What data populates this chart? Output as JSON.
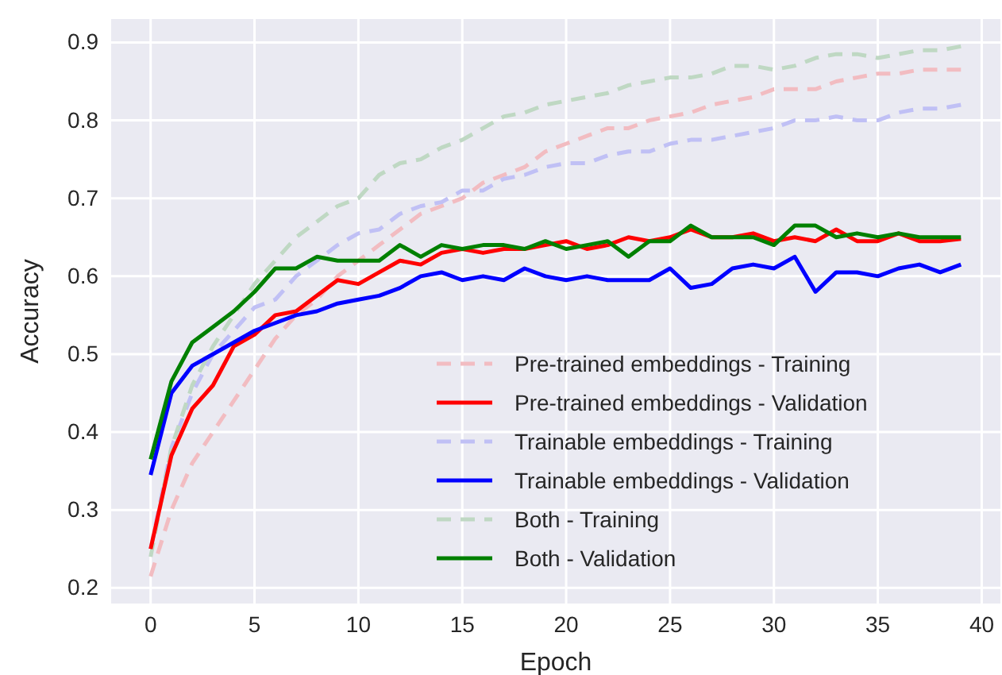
{
  "chart_data": {
    "type": "line",
    "xlabel": "Epoch",
    "ylabel": "Accuracy",
    "x": [
      0,
      1,
      2,
      3,
      4,
      5,
      6,
      7,
      8,
      9,
      10,
      11,
      12,
      13,
      14,
      15,
      16,
      17,
      18,
      19,
      20,
      21,
      22,
      23,
      24,
      25,
      26,
      27,
      28,
      29,
      30,
      31,
      32,
      33,
      34,
      35,
      36,
      37,
      38,
      39
    ],
    "xlim": [
      -1.9,
      40.9
    ],
    "xticks": [
      0,
      5,
      10,
      15,
      20,
      25,
      30,
      35,
      40
    ],
    "ylim": [
      0.18,
      0.93
    ],
    "yticks": [
      0.2,
      0.3,
      0.4,
      0.5,
      0.6,
      0.7,
      0.8,
      0.9
    ],
    "grid": true,
    "legend": "bottom right",
    "series": [
      {
        "name": "Pre-trained embeddings - Training",
        "color": "#f2bcc1",
        "line_style": "dashed",
        "values": [
          0.215,
          0.3,
          0.36,
          0.4,
          0.44,
          0.48,
          0.52,
          0.55,
          0.57,
          0.6,
          0.62,
          0.64,
          0.66,
          0.68,
          0.69,
          0.7,
          0.72,
          0.73,
          0.74,
          0.76,
          0.77,
          0.78,
          0.79,
          0.79,
          0.8,
          0.805,
          0.81,
          0.82,
          0.825,
          0.83,
          0.84,
          0.84,
          0.84,
          0.85,
          0.855,
          0.86,
          0.86,
          0.865,
          0.865,
          0.865
        ]
      },
      {
        "name": "Pre-trained embeddings - Validation",
        "color": "#ff0000",
        "line_style": "solid",
        "values": [
          0.25,
          0.37,
          0.43,
          0.46,
          0.51,
          0.525,
          0.55,
          0.555,
          0.575,
          0.595,
          0.59,
          0.605,
          0.62,
          0.615,
          0.63,
          0.635,
          0.63,
          0.635,
          0.635,
          0.64,
          0.645,
          0.635,
          0.64,
          0.65,
          0.645,
          0.65,
          0.66,
          0.65,
          0.65,
          0.655,
          0.645,
          0.65,
          0.645,
          0.66,
          0.645,
          0.645,
          0.655,
          0.645,
          0.645,
          0.648
        ]
      },
      {
        "name": "Trainable embeddings - Training",
        "color": "#c0c0f5",
        "line_style": "dashed",
        "values": [
          0.25,
          0.38,
          0.45,
          0.5,
          0.53,
          0.56,
          0.57,
          0.6,
          0.62,
          0.64,
          0.655,
          0.66,
          0.68,
          0.69,
          0.695,
          0.71,
          0.71,
          0.725,
          0.73,
          0.74,
          0.745,
          0.745,
          0.755,
          0.76,
          0.76,
          0.77,
          0.775,
          0.775,
          0.78,
          0.785,
          0.79,
          0.8,
          0.8,
          0.805,
          0.8,
          0.8,
          0.81,
          0.815,
          0.815,
          0.82
        ]
      },
      {
        "name": "Trainable embeddings - Validation",
        "color": "#0000ff",
        "line_style": "solid",
        "values": [
          0.345,
          0.45,
          0.485,
          0.5,
          0.515,
          0.53,
          0.54,
          0.55,
          0.555,
          0.565,
          0.57,
          0.575,
          0.585,
          0.6,
          0.605,
          0.595,
          0.6,
          0.595,
          0.61,
          0.6,
          0.595,
          0.6,
          0.595,
          0.595,
          0.595,
          0.61,
          0.585,
          0.59,
          0.61,
          0.615,
          0.61,
          0.625,
          0.58,
          0.605,
          0.605,
          0.6,
          0.61,
          0.615,
          0.605,
          0.615
        ]
      },
      {
        "name": "Both - Training",
        "color": "#bfd8c3",
        "line_style": "dashed",
        "values": [
          0.24,
          0.38,
          0.46,
          0.51,
          0.55,
          0.59,
          0.62,
          0.65,
          0.67,
          0.69,
          0.7,
          0.73,
          0.745,
          0.75,
          0.765,
          0.775,
          0.79,
          0.805,
          0.81,
          0.82,
          0.825,
          0.83,
          0.835,
          0.845,
          0.85,
          0.855,
          0.855,
          0.86,
          0.87,
          0.87,
          0.865,
          0.87,
          0.88,
          0.885,
          0.885,
          0.88,
          0.885,
          0.89,
          0.89,
          0.895
        ]
      },
      {
        "name": "Both - Validation",
        "color": "#008000",
        "line_style": "solid",
        "values": [
          0.365,
          0.465,
          0.515,
          0.535,
          0.555,
          0.58,
          0.61,
          0.61,
          0.625,
          0.62,
          0.62,
          0.62,
          0.64,
          0.625,
          0.64,
          0.635,
          0.64,
          0.64,
          0.635,
          0.645,
          0.635,
          0.64,
          0.645,
          0.625,
          0.645,
          0.645,
          0.665,
          0.65,
          0.65,
          0.65,
          0.64,
          0.665,
          0.665,
          0.65,
          0.655,
          0.65,
          0.655,
          0.65,
          0.65,
          0.65
        ]
      }
    ]
  }
}
